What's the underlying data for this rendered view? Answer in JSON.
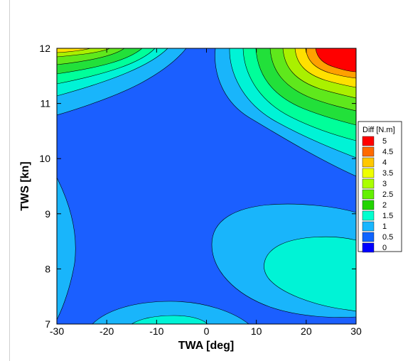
{
  "chart_data": {
    "type": "heatmap",
    "subtype": "filled-contour",
    "xlabel": "TWA [deg]",
    "ylabel": "TWS [kn]",
    "xlim": [
      -30,
      30
    ],
    "ylim": [
      7,
      12
    ],
    "x_ticks": [
      "-30",
      "-20",
      "-10",
      "0",
      "10",
      "20",
      "30"
    ],
    "y_ticks": [
      "7",
      "8",
      "9",
      "10",
      "11",
      "12"
    ],
    "grid": false,
    "legend": {
      "title": "Diff [N.m]",
      "placement": "right",
      "levels": [
        "5",
        "4.5",
        "4",
        "3.5",
        "3",
        "2.5",
        "2",
        "1.5",
        "1",
        "0.5",
        "0"
      ],
      "colors": [
        "#ff0000",
        "#ff6a00",
        "#ffc800",
        "#eeff00",
        "#aaff00",
        "#64f000",
        "#22d400",
        "#00ffcf",
        "#19b6ff",
        "#0f64ff",
        "#0000ff"
      ]
    },
    "band_colors": {
      "0.5-1": "#1b5fff",
      "1-1.5": "#19b5fb",
      "1.5-2": "#00f3d6",
      "2-2.5": "#00ff9a",
      "2.5-3": "#22e03a",
      "3-3.5": "#5fe81c",
      "3.5-4": "#aaf000",
      "4-4.5": "#ffe000",
      "4.5-5": "#ffa000",
      ">5": "#ff0000"
    }
  }
}
